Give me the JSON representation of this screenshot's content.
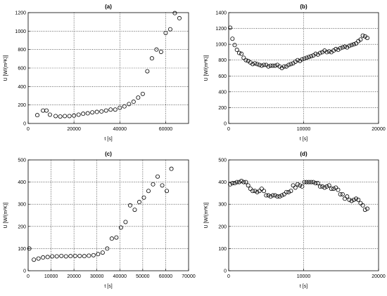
{
  "chart_data": [
    {
      "type": "scatter",
      "title": "(a)",
      "xlabel": "t [s]",
      "ylabel": "U [W/(m²K)]",
      "xlim": [
        0,
        70000
      ],
      "ylim": [
        0,
        1200
      ],
      "xticks": [
        0,
        20000,
        40000,
        60000
      ],
      "yticks": [
        0,
        200,
        400,
        600,
        800,
        1000,
        1200
      ],
      "grid": true,
      "series": [
        {
          "x": [
            4000,
            6500,
            8000,
            9500,
            12000,
            14000,
            16000,
            18000,
            20000,
            22000,
            24000,
            26000,
            28000,
            30000,
            32000,
            34000,
            36000,
            38000,
            40000,
            42000,
            44000,
            46000,
            48000,
            50000,
            52000,
            54000,
            56000,
            58000,
            60000,
            62000,
            64000,
            66000
          ],
          "y": [
            90,
            140,
            140,
            95,
            80,
            75,
            80,
            80,
            85,
            95,
            105,
            110,
            120,
            125,
            130,
            140,
            150,
            150,
            170,
            185,
            210,
            235,
            280,
            320,
            565,
            705,
            800,
            775,
            980,
            1020,
            1195,
            1140
          ]
        }
      ]
    },
    {
      "type": "scatter",
      "title": "(b)",
      "xlabel": "t [s]",
      "ylabel": "U [W/(m²K)]",
      "xlim": [
        0,
        20000
      ],
      "ylim": [
        0,
        1400
      ],
      "xticks": [
        0,
        10000,
        20000
      ],
      "yticks": [
        0,
        200,
        400,
        600,
        800,
        1000,
        1200,
        1400
      ],
      "grid": true,
      "series": [
        {
          "x": [
            200,
            500,
            800,
            1100,
            1400,
            1700,
            2000,
            2300,
            2600,
            2900,
            3200,
            3500,
            3800,
            4100,
            4400,
            4700,
            5000,
            5300,
            5600,
            5900,
            6200,
            6500,
            6800,
            7100,
            7400,
            7700,
            8000,
            8300,
            8600,
            8900,
            9200,
            9500,
            9800,
            10100,
            10400,
            10700,
            11000,
            11300,
            11600,
            11900,
            12200,
            12500,
            12800,
            13100,
            13400,
            13700,
            14000,
            14300,
            14600,
            14900,
            15200,
            15500,
            15800,
            16100,
            16400,
            16700,
            17000,
            17300,
            17600,
            17900,
            18200,
            18500
          ],
          "y": [
            1210,
            1070,
            990,
            930,
            890,
            880,
            830,
            800,
            790,
            770,
            750,
            760,
            750,
            740,
            730,
            740,
            740,
            720,
            730,
            730,
            730,
            740,
            720,
            700,
            720,
            720,
            740,
            750,
            760,
            780,
            800,
            790,
            810,
            820,
            830,
            840,
            850,
            860,
            880,
            870,
            890,
            900,
            920,
            900,
            910,
            900,
            920,
            940,
            930,
            950,
            960,
            970,
            960,
            980,
            990,
            1000,
            1010,
            1040,
            1060,
            1110,
            1100,
            1080
          ]
        }
      ]
    },
    {
      "type": "scatter",
      "title": "(c)",
      "xlabel": "t [s]",
      "ylabel": "U [W/(m²K)]",
      "xlim": [
        0,
        70000
      ],
      "ylim": [
        0,
        500
      ],
      "xticks": [
        0,
        10000,
        20000,
        30000,
        40000,
        50000,
        60000,
        70000
      ],
      "yticks": [
        0,
        100,
        200,
        300,
        400,
        500
      ],
      "grid": true,
      "series": [
        {
          "x": [
            500,
            2500,
            4500,
            6500,
            8500,
            10500,
            12500,
            14500,
            16500,
            18500,
            20500,
            22500,
            24500,
            26500,
            28500,
            30500,
            32500,
            34500,
            36500,
            38500,
            40500,
            42500,
            44500,
            46500,
            48500,
            50500,
            52500,
            54500,
            56500,
            58500,
            60500,
            62500
          ],
          "y": [
            100,
            50,
            55,
            60,
            62,
            65,
            65,
            67,
            65,
            66,
            67,
            67,
            66,
            68,
            70,
            75,
            82,
            100,
            145,
            150,
            195,
            220,
            295,
            275,
            310,
            330,
            360,
            390,
            425,
            385,
            360,
            460
          ]
        }
      ]
    },
    {
      "type": "scatter",
      "title": "(d)",
      "xlabel": "t [s]",
      "ylabel": "U [W/(m²K)]",
      "xlim": [
        0,
        20000
      ],
      "ylim": [
        0,
        500
      ],
      "xticks": [
        0,
        10000,
        20000
      ],
      "yticks": [
        0,
        100,
        200,
        300,
        400,
        500
      ],
      "grid": true,
      "series": [
        {
          "x": [
            200,
            500,
            800,
            1100,
            1400,
            1700,
            2000,
            2300,
            2600,
            2900,
            3200,
            3500,
            3800,
            4100,
            4400,
            4700,
            5000,
            5300,
            5600,
            5900,
            6200,
            6500,
            6800,
            7100,
            7400,
            7700,
            8000,
            8300,
            8600,
            8900,
            9200,
            9500,
            9800,
            10100,
            10400,
            10700,
            11000,
            11300,
            11600,
            11900,
            12200,
            12500,
            12800,
            13100,
            13400,
            13700,
            14000,
            14300,
            14600,
            14900,
            15200,
            15500,
            15800,
            16100,
            16400,
            16700,
            17000,
            17300,
            17600,
            17900,
            18200,
            18500
          ],
          "y": [
            390,
            395,
            395,
            400,
            400,
            405,
            400,
            400,
            385,
            370,
            360,
            360,
            355,
            360,
            370,
            360,
            340,
            340,
            335,
            340,
            340,
            335,
            335,
            340,
            345,
            355,
            355,
            360,
            385,
            375,
            390,
            385,
            380,
            400,
            400,
            400,
            400,
            400,
            395,
            395,
            380,
            380,
            375,
            380,
            385,
            370,
            370,
            375,
            365,
            345,
            345,
            325,
            335,
            320,
            315,
            320,
            325,
            320,
            305,
            295,
            275,
            280
          ]
        }
      ]
    }
  ]
}
